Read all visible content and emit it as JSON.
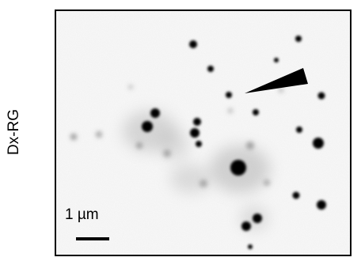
{
  "panel": {
    "side_label": "Dx-RG",
    "scale_bar_label": "1 µm",
    "arrowhead_icon": "arrowhead-icon",
    "spot_color": "#000000",
    "haze_color": "#8c8c8c"
  }
}
